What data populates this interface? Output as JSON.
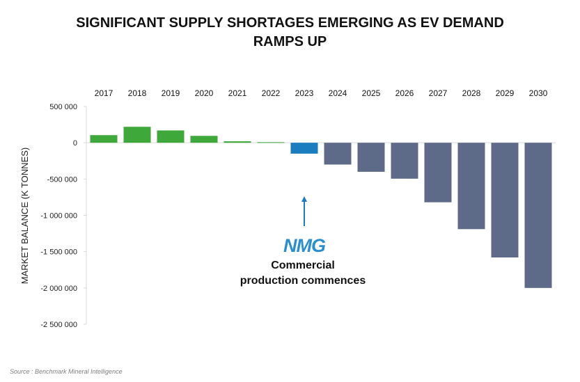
{
  "title_line1": "SIGNIFICANT SUPPLY SHORTAGES EMERGING AS EV DEMAND",
  "title_line2": "RAMPS UP",
  "source": "Source : Benchmark Mineral Intelligence",
  "annotation": {
    "logo": "NMG",
    "line1": "Commercial",
    "line2": "production commences",
    "target_year": "2023"
  },
  "colors": {
    "surplus": "#3fa83a",
    "highlight": "#1a7dbf",
    "deficit": "#5d6b89",
    "arrow": "#1a7dbf",
    "logo": "#2a8fd0"
  },
  "chart_data": {
    "type": "bar",
    "title": "SIGNIFICANT SUPPLY SHORTAGES EMERGING AS EV DEMAND RAMPS UP",
    "xlabel": "",
    "ylabel": "MARKET BALANCE (K TONNES)",
    "categories": [
      "2017",
      "2018",
      "2019",
      "2020",
      "2021",
      "2022",
      "2023",
      "2024",
      "2025",
      "2026",
      "2027",
      "2028",
      "2029",
      "2030"
    ],
    "values": [
      105000,
      220000,
      170000,
      95000,
      20000,
      8000,
      -150000,
      -300000,
      -400000,
      -495000,
      -820000,
      -1190000,
      -1580000,
      -2000000
    ],
    "bar_color_keys": [
      "surplus",
      "surplus",
      "surplus",
      "surplus",
      "surplus",
      "surplus",
      "highlight",
      "deficit",
      "deficit",
      "deficit",
      "deficit",
      "deficit",
      "deficit",
      "deficit"
    ],
    "ylim": [
      -2500000,
      500000
    ],
    "yticks": [
      500000,
      0,
      -500000,
      -1000000,
      -1500000,
      -2000000,
      -2500000
    ],
    "ytick_labels": [
      "500 000",
      "0",
      "-500 000",
      "-1 000 000",
      "-1 500 000",
      "-2 000 000",
      "-2 500 000"
    ],
    "category_axis_position": "top",
    "grid": false
  }
}
